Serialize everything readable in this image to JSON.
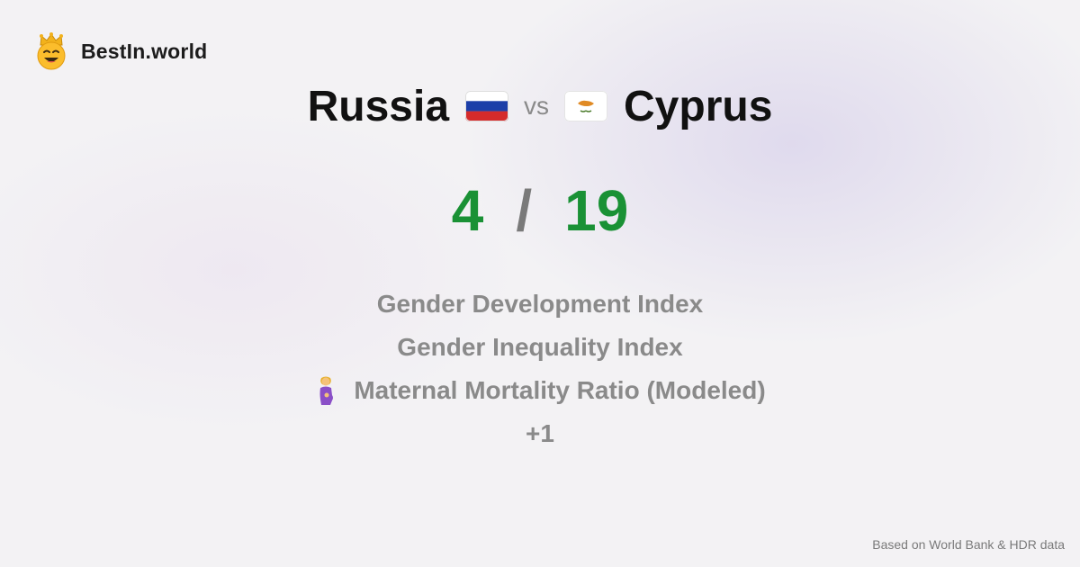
{
  "brand": {
    "name": "BestIn.world",
    "logo_icon": "smiling-face-with-crown-icon"
  },
  "comparison": {
    "left": {
      "country": "Russia",
      "flag_icon": "russia-flag-icon",
      "score": "4"
    },
    "vs_label": "vs",
    "right": {
      "country": "Cyprus",
      "flag_icon": "cyprus-flag-icon",
      "score": "19"
    },
    "separator": "/"
  },
  "metrics": [
    {
      "label": "Gender Development Index",
      "icon": ""
    },
    {
      "label": "Gender Inequality Index",
      "icon": ""
    },
    {
      "label": "Maternal Mortality Ratio (Modeled)",
      "icon": "pregnant-woman-icon"
    },
    {
      "label": "+1",
      "icon": ""
    }
  ],
  "footer": {
    "source": "Based on World Bank & HDR data"
  },
  "colors": {
    "score_green": "#1a9135",
    "muted_gray": "#8a8a8a",
    "background": "#f3f2f4"
  }
}
